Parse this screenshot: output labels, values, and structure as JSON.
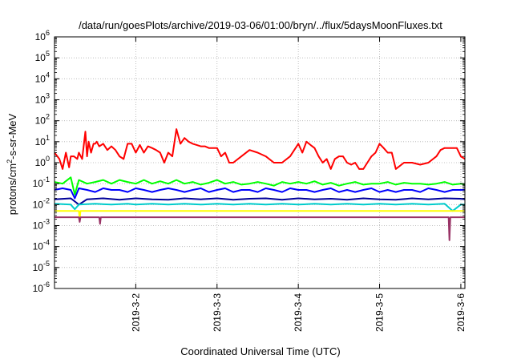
{
  "chart_data": {
    "type": "line",
    "title": "/data/run/goesPlots/archive/2019-03-06/01:00/bryn/../flux/5daysMoonFluxes.txt",
    "xlabel": "Coordinated Universal Time (UTC)",
    "ylabel": "protons/cm2-s-sr-MeV",
    "ylabel_parts": {
      "pre": "protons/cm",
      "sup": "2",
      "post": "-s-sr-MeV"
    },
    "yscale": "log",
    "ylim_exp": [
      -6,
      6
    ],
    "ytick_exponents": [
      -6,
      -5,
      -4,
      -3,
      -2,
      -1,
      0,
      1,
      2,
      3,
      4,
      5,
      6
    ],
    "ytick_base": "10",
    "xlim": [
      0,
      5.05
    ],
    "x_units": "days after 2019-3-1 00:00 UTC",
    "xticks": [
      {
        "x": 1,
        "label": "2019-3-2"
      },
      {
        "x": 2,
        "label": "2019-3-3"
      },
      {
        "x": 3,
        "label": "2019-3-4"
      },
      {
        "x": 4,
        "label": "2019-3-5"
      },
      {
        "x": 5,
        "label": "2019-3-6"
      }
    ],
    "grid": true,
    "legend": "none",
    "series": [
      {
        "color": "#ff0000",
        "width": 2,
        "x": [
          0,
          0.06,
          0.1,
          0.14,
          0.18,
          0.2,
          0.24,
          0.28,
          0.3,
          0.34,
          0.38,
          0.4,
          0.42,
          0.45,
          0.48,
          0.5,
          0.52,
          0.55,
          0.6,
          0.65,
          0.7,
          0.75,
          0.8,
          0.85,
          0.9,
          0.95,
          1.0,
          1.05,
          1.1,
          1.15,
          1.2,
          1.25,
          1.3,
          1.35,
          1.4,
          1.45,
          1.5,
          1.55,
          1.6,
          1.65,
          1.7,
          1.75,
          1.8,
          1.85,
          1.9,
          1.95,
          2.0,
          2.05,
          2.1,
          2.15,
          2.2,
          2.3,
          2.4,
          2.5,
          2.6,
          2.7,
          2.8,
          2.9,
          3.0,
          3.05,
          3.1,
          3.15,
          3.2,
          3.25,
          3.3,
          3.35,
          3.4,
          3.45,
          3.5,
          3.55,
          3.6,
          3.65,
          3.7,
          3.75,
          3.8,
          3.85,
          3.9,
          3.95,
          4.0,
          4.05,
          4.1,
          4.15,
          4.2,
          4.3,
          4.4,
          4.5,
          4.6,
          4.7,
          4.75,
          4.8,
          4.85,
          4.9,
          4.95,
          5.0,
          5.05
        ],
        "y": [
          3,
          1.5,
          0.5,
          3,
          0.6,
          2,
          2,
          1.5,
          3,
          1.5,
          30,
          2,
          10,
          3,
          8,
          8,
          10,
          6,
          8,
          4,
          6,
          4,
          2,
          1.5,
          8,
          8,
          3,
          7,
          3,
          6,
          5,
          4,
          3,
          1,
          3,
          2,
          40,
          8,
          15,
          10,
          8,
          7,
          6,
          6,
          5,
          5,
          5,
          2,
          3,
          1,
          1,
          2,
          4,
          3,
          2,
          1,
          1,
          2,
          8,
          3,
          10,
          7,
          5,
          2,
          1,
          1.5,
          0.5,
          1.5,
          2,
          2,
          1,
          0.8,
          1,
          0.5,
          0.5,
          1,
          2,
          3,
          8,
          5,
          3,
          3,
          0.5,
          1,
          1,
          0.8,
          1,
          2,
          4,
          5,
          5,
          5,
          5,
          2,
          1.5
        ]
      },
      {
        "color": "#00ff00",
        "width": 2,
        "x": [
          0,
          0.1,
          0.2,
          0.25,
          0.3,
          0.4,
          0.5,
          0.6,
          0.7,
          0.8,
          0.9,
          1.0,
          1.1,
          1.2,
          1.3,
          1.4,
          1.5,
          1.6,
          1.7,
          1.8,
          1.9,
          2.0,
          2.1,
          2.2,
          2.3,
          2.4,
          2.5,
          2.6,
          2.7,
          2.8,
          2.9,
          3.0,
          3.1,
          3.2,
          3.3,
          3.4,
          3.5,
          3.6,
          3.7,
          3.8,
          3.9,
          4.0,
          4.1,
          4.2,
          4.3,
          4.4,
          4.5,
          4.6,
          4.7,
          4.8,
          4.9,
          5.0,
          5.05
        ],
        "y": [
          0.12,
          0.1,
          0.2,
          0.03,
          0.15,
          0.1,
          0.12,
          0.15,
          0.1,
          0.15,
          0.12,
          0.1,
          0.15,
          0.1,
          0.13,
          0.1,
          0.15,
          0.1,
          0.12,
          0.09,
          0.11,
          0.15,
          0.1,
          0.12,
          0.09,
          0.1,
          0.12,
          0.1,
          0.08,
          0.12,
          0.1,
          0.12,
          0.1,
          0.13,
          0.09,
          0.11,
          0.08,
          0.1,
          0.12,
          0.09,
          0.1,
          0.1,
          0.12,
          0.09,
          0.11,
          0.1,
          0.1,
          0.09,
          0.1,
          0.12,
          0.09,
          0.1,
          0.09
        ]
      },
      {
        "color": "#0000ff",
        "width": 2,
        "x": [
          0,
          0.1,
          0.2,
          0.25,
          0.3,
          0.4,
          0.5,
          0.6,
          0.7,
          0.8,
          0.9,
          1.0,
          1.1,
          1.2,
          1.3,
          1.4,
          1.5,
          1.6,
          1.7,
          1.8,
          1.9,
          2.0,
          2.1,
          2.2,
          2.3,
          2.4,
          2.5,
          2.6,
          2.7,
          2.8,
          2.9,
          3.0,
          3.1,
          3.2,
          3.3,
          3.4,
          3.5,
          3.6,
          3.7,
          3.8,
          3.9,
          4.0,
          4.1,
          4.2,
          4.3,
          4.4,
          4.5,
          4.6,
          4.7,
          4.8,
          4.9,
          5.0,
          5.05
        ],
        "y": [
          0.05,
          0.06,
          0.05,
          0.02,
          0.06,
          0.05,
          0.04,
          0.06,
          0.05,
          0.05,
          0.04,
          0.06,
          0.05,
          0.04,
          0.05,
          0.06,
          0.05,
          0.04,
          0.05,
          0.06,
          0.04,
          0.05,
          0.06,
          0.04,
          0.05,
          0.05,
          0.04,
          0.06,
          0.05,
          0.04,
          0.06,
          0.05,
          0.05,
          0.04,
          0.05,
          0.06,
          0.04,
          0.05,
          0.04,
          0.05,
          0.06,
          0.04,
          0.05,
          0.04,
          0.05,
          0.05,
          0.04,
          0.06,
          0.05,
          0.04,
          0.05,
          0.05,
          0.05
        ]
      },
      {
        "color": "#000099",
        "width": 2,
        "x": [
          0,
          0.2,
          0.3,
          0.4,
          0.6,
          0.8,
          1.0,
          1.2,
          1.4,
          1.6,
          1.8,
          2.0,
          2.2,
          2.4,
          2.6,
          2.8,
          3.0,
          3.2,
          3.4,
          3.6,
          3.8,
          4.0,
          4.2,
          4.4,
          4.6,
          4.8,
          5.0,
          5.05
        ],
        "y": [
          0.018,
          0.02,
          0.01,
          0.018,
          0.02,
          0.017,
          0.02,
          0.018,
          0.017,
          0.02,
          0.018,
          0.02,
          0.017,
          0.019,
          0.02,
          0.017,
          0.02,
          0.018,
          0.019,
          0.017,
          0.02,
          0.018,
          0.017,
          0.02,
          0.018,
          0.02,
          0.019,
          0.018
        ]
      },
      {
        "color": "#00cccc",
        "width": 2,
        "x": [
          0,
          0.2,
          0.25,
          0.3,
          0.5,
          0.7,
          0.9,
          1.0,
          1.2,
          1.4,
          1.6,
          1.8,
          2.0,
          2.2,
          2.4,
          2.6,
          2.8,
          3.0,
          3.2,
          3.4,
          3.6,
          3.8,
          4.0,
          4.2,
          4.4,
          4.6,
          4.8,
          4.9,
          5.0,
          5.05
        ],
        "y": [
          0.011,
          0.01,
          0.006,
          0.01,
          0.011,
          0.01,
          0.011,
          0.01,
          0.011,
          0.01,
          0.011,
          0.01,
          0.011,
          0.01,
          0.011,
          0.01,
          0.011,
          0.01,
          0.011,
          0.01,
          0.011,
          0.01,
          0.011,
          0.01,
          0.011,
          0.01,
          0.011,
          0.005,
          0.01,
          0.01
        ]
      },
      {
        "color": "#ffff00",
        "width": 2,
        "x": [
          0,
          0.3,
          0.31,
          0.32,
          0.6,
          1.0,
          1.5,
          2.0,
          2.5,
          3.0,
          3.5,
          4.0,
          4.5,
          5.0,
          5.05
        ],
        "y": [
          0.005,
          0.005,
          0.002,
          0.005,
          0.005,
          0.005,
          0.005,
          0.005,
          0.005,
          0.005,
          0.005,
          0.005,
          0.005,
          0.005,
          0.005
        ]
      },
      {
        "color": "#993366",
        "width": 2,
        "x": [
          0,
          0.3,
          0.31,
          0.32,
          0.55,
          0.56,
          0.57,
          1.0,
          1.5,
          2.0,
          2.5,
          3.0,
          3.5,
          3.8,
          4.0,
          4.5,
          4.85,
          4.86,
          4.87,
          5.0,
          5.05
        ],
        "y": [
          0.0025,
          0.0025,
          0.0015,
          0.0025,
          0.0025,
          0.0012,
          0.0025,
          0.0025,
          0.0025,
          0.0025,
          0.0025,
          0.0025,
          0.0025,
          0.0025,
          0.0025,
          0.0025,
          0.0025,
          0.0002,
          0.0025,
          0.0025,
          0.0025
        ]
      }
    ]
  }
}
